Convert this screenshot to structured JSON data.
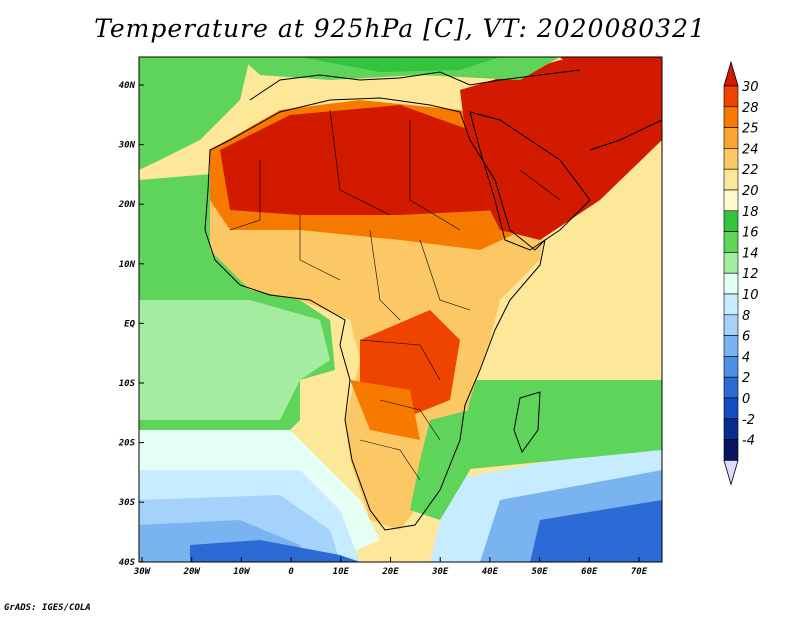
{
  "title": "Temperature at 925hPa [C], VT: 2020080321",
  "credit": "GrADS: IGES/COLA",
  "map": {
    "lon_ticks": [
      "30W",
      "20W",
      "10W",
      "0",
      "10E",
      "20E",
      "30E",
      "40E",
      "50E",
      "60E",
      "70E"
    ],
    "lat_ticks": [
      "40N",
      "30N",
      "20N",
      "10N",
      "EQ",
      "10S",
      "20S",
      "30S",
      "40S"
    ]
  },
  "colorbar": {
    "labels": [
      "30",
      "28",
      "25",
      "24",
      "22",
      "20",
      "18",
      "16",
      "14",
      "12",
      "10",
      "8",
      "6",
      "4",
      "2",
      "0",
      "-2",
      "-4"
    ],
    "colors": [
      "#d21a00",
      "#ee4400",
      "#f67a00",
      "#f9a530",
      "#fbc865",
      "#fde89a",
      "#fffacc",
      "#33c33c",
      "#5fd45a",
      "#a6eca0",
      "#e6fff4",
      "#c8ecff",
      "#a5d2fa",
      "#7ab4f0",
      "#4e8fe3",
      "#2c6bd6",
      "#154cc0",
      "#0a2c8e",
      "#08155e",
      "#dcdcff"
    ]
  },
  "colors": {
    "hot": "#d21a00",
    "warm": "#f79a18",
    "mild": "#fde08a",
    "green": "#46c846",
    "sea_cool": "#a6eca0",
    "cold": "#2c6bd6"
  }
}
